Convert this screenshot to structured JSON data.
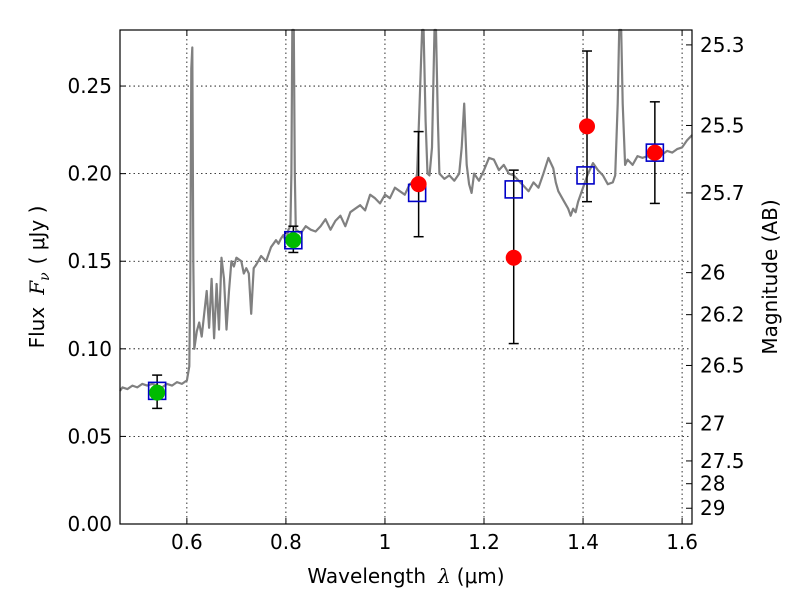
{
  "chart_data": {
    "type": "scatter",
    "xlabel_prefix": "Wavelength",
    "xlabel_symbol": "λ",
    "xlabel_unit": "(μm)",
    "ylabel_prefix": "Flux",
    "ylabel_symbol": "F",
    "ylabel_subscript": "ν",
    "ylabel_unit": "( μJy )",
    "y2label": "Magnitude (AB)",
    "xlim": [
      0.465,
      1.62
    ],
    "ylim": [
      0.0,
      0.282
    ],
    "x_ticks": [
      0.6,
      0.8,
      1.0,
      1.2,
      1.4,
      1.6
    ],
    "x_tick_labels": [
      "0.6",
      "0.8",
      "1",
      "1.2",
      "1.4",
      "1.6"
    ],
    "y_ticks": [
      0.0,
      0.05,
      0.1,
      0.15,
      0.2,
      0.25
    ],
    "y_tick_labels": [
      "0.00",
      "0.05",
      "0.10",
      "0.15",
      "0.20",
      "0.25"
    ],
    "y2_ticks": [
      {
        "label": "25.3",
        "flux": 0.2735
      },
      {
        "label": "25.5",
        "flux": 0.2275
      },
      {
        "label": "25.7",
        "flux": 0.189
      },
      {
        "label": "26",
        "flux": 0.1435
      },
      {
        "label": "26.2",
        "flux": 0.1195
      },
      {
        "label": "26.5",
        "flux": 0.0905
      },
      {
        "label": "27",
        "flux": 0.0575
      },
      {
        "label": "27.5",
        "flux": 0.036
      },
      {
        "label": "28",
        "flux": 0.023
      },
      {
        "label": "29",
        "flux": 0.009
      }
    ],
    "grid": true,
    "colors": {
      "spectrum": "#808080",
      "model_box": "#0000c8",
      "green_point": "#00bb00",
      "red_point": "#ff0000",
      "errorbar": "#000000"
    },
    "series": [
      {
        "name": "model-spectrum",
        "type": "line",
        "points": [
          [
            0.465,
            0.076
          ],
          [
            0.47,
            0.078
          ],
          [
            0.48,
            0.077
          ],
          [
            0.49,
            0.079
          ],
          [
            0.5,
            0.078
          ],
          [
            0.51,
            0.08
          ],
          [
            0.52,
            0.079
          ],
          [
            0.53,
            0.08
          ],
          [
            0.54,
            0.079
          ],
          [
            0.55,
            0.078
          ],
          [
            0.56,
            0.08
          ],
          [
            0.57,
            0.079
          ],
          [
            0.58,
            0.081
          ],
          [
            0.59,
            0.08
          ],
          [
            0.6,
            0.082
          ],
          [
            0.605,
            0.09
          ],
          [
            0.607,
            0.14
          ],
          [
            0.609,
            0.26
          ],
          [
            0.611,
            0.272
          ],
          [
            0.613,
            0.15
          ],
          [
            0.615,
            0.1
          ],
          [
            0.62,
            0.11
          ],
          [
            0.625,
            0.115
          ],
          [
            0.63,
            0.107
          ],
          [
            0.635,
            0.12
          ],
          [
            0.64,
            0.133
          ],
          [
            0.645,
            0.112
          ],
          [
            0.65,
            0.14
          ],
          [
            0.655,
            0.106
          ],
          [
            0.66,
            0.137
          ],
          [
            0.665,
            0.111
          ],
          [
            0.67,
            0.152
          ],
          [
            0.675,
            0.14
          ],
          [
            0.68,
            0.111
          ],
          [
            0.685,
            0.133
          ],
          [
            0.69,
            0.15
          ],
          [
            0.695,
            0.147
          ],
          [
            0.7,
            0.152
          ],
          [
            0.71,
            0.15
          ],
          [
            0.715,
            0.143
          ],
          [
            0.72,
            0.146
          ],
          [
            0.725,
            0.143
          ],
          [
            0.73,
            0.12
          ],
          [
            0.735,
            0.146
          ],
          [
            0.74,
            0.148
          ],
          [
            0.75,
            0.153
          ],
          [
            0.76,
            0.15
          ],
          [
            0.77,
            0.158
          ],
          [
            0.78,
            0.162
          ],
          [
            0.785,
            0.16
          ],
          [
            0.79,
            0.163
          ],
          [
            0.795,
            0.165
          ],
          [
            0.8,
            0.161
          ],
          [
            0.805,
            0.168
          ],
          [
            0.809,
            0.17
          ],
          [
            0.811,
            0.2
          ],
          [
            0.813,
            0.282
          ],
          [
            0.816,
            0.282
          ],
          [
            0.818,
            0.2
          ],
          [
            0.82,
            0.168
          ],
          [
            0.83,
            0.166
          ],
          [
            0.84,
            0.17
          ],
          [
            0.85,
            0.168
          ],
          [
            0.86,
            0.167
          ],
          [
            0.87,
            0.17
          ],
          [
            0.88,
            0.174
          ],
          [
            0.89,
            0.168
          ],
          [
            0.9,
            0.173
          ],
          [
            0.91,
            0.176
          ],
          [
            0.92,
            0.17
          ],
          [
            0.93,
            0.178
          ],
          [
            0.94,
            0.18
          ],
          [
            0.95,
            0.182
          ],
          [
            0.96,
            0.179
          ],
          [
            0.97,
            0.188
          ],
          [
            0.98,
            0.186
          ],
          [
            0.99,
            0.183
          ],
          [
            1.0,
            0.188
          ],
          [
            1.01,
            0.186
          ],
          [
            1.02,
            0.192
          ],
          [
            1.03,
            0.19
          ],
          [
            1.04,
            0.188
          ],
          [
            1.05,
            0.194
          ],
          [
            1.055,
            0.195
          ],
          [
            1.06,
            0.193
          ],
          [
            1.065,
            0.2
          ],
          [
            1.07,
            0.24
          ],
          [
            1.075,
            0.282
          ],
          [
            1.078,
            0.282
          ],
          [
            1.082,
            0.23
          ],
          [
            1.086,
            0.2
          ],
          [
            1.09,
            0.199
          ],
          [
            1.095,
            0.215
          ],
          [
            1.1,
            0.282
          ],
          [
            1.103,
            0.282
          ],
          [
            1.107,
            0.23
          ],
          [
            1.11,
            0.2
          ],
          [
            1.12,
            0.197
          ],
          [
            1.13,
            0.199
          ],
          [
            1.14,
            0.196
          ],
          [
            1.15,
            0.2
          ],
          [
            1.155,
            0.215
          ],
          [
            1.16,
            0.24
          ],
          [
            1.165,
            0.205
          ],
          [
            1.17,
            0.194
          ],
          [
            1.175,
            0.189
          ],
          [
            1.18,
            0.2
          ],
          [
            1.19,
            0.196
          ],
          [
            1.2,
            0.202
          ],
          [
            1.21,
            0.209
          ],
          [
            1.22,
            0.208
          ],
          [
            1.23,
            0.202
          ],
          [
            1.24,
            0.205
          ],
          [
            1.25,
            0.2
          ],
          [
            1.26,
            0.199
          ],
          [
            1.27,
            0.196
          ],
          [
            1.28,
            0.193
          ],
          [
            1.29,
            0.19
          ],
          [
            1.3,
            0.195
          ],
          [
            1.31,
            0.192
          ],
          [
            1.32,
            0.2
          ],
          [
            1.33,
            0.209
          ],
          [
            1.34,
            0.203
          ],
          [
            1.345,
            0.195
          ],
          [
            1.35,
            0.19
          ],
          [
            1.36,
            0.185
          ],
          [
            1.37,
            0.18
          ],
          [
            1.375,
            0.176
          ],
          [
            1.38,
            0.18
          ],
          [
            1.385,
            0.178
          ],
          [
            1.39,
            0.184
          ],
          [
            1.4,
            0.192
          ],
          [
            1.41,
            0.2
          ],
          [
            1.42,
            0.206
          ],
          [
            1.43,
            0.202
          ],
          [
            1.44,
            0.199
          ],
          [
            1.45,
            0.194
          ],
          [
            1.46,
            0.195
          ],
          [
            1.465,
            0.199
          ],
          [
            1.47,
            0.24
          ],
          [
            1.473,
            0.282
          ],
          [
            1.477,
            0.282
          ],
          [
            1.48,
            0.24
          ],
          [
            1.485,
            0.205
          ],
          [
            1.49,
            0.208
          ],
          [
            1.5,
            0.205
          ],
          [
            1.51,
            0.21
          ],
          [
            1.52,
            0.209
          ],
          [
            1.53,
            0.21
          ],
          [
            1.54,
            0.208
          ],
          [
            1.55,
            0.212
          ],
          [
            1.56,
            0.211
          ],
          [
            1.57,
            0.213
          ],
          [
            1.58,
            0.212
          ],
          [
            1.59,
            0.214
          ],
          [
            1.6,
            0.215
          ],
          [
            1.61,
            0.219
          ],
          [
            1.62,
            0.222
          ]
        ]
      },
      {
        "name": "model-photometry",
        "type": "box-marker",
        "x": [
          0.54,
          0.815,
          1.065,
          1.26,
          1.405,
          1.545
        ],
        "y": [
          0.076,
          0.162,
          0.189,
          0.191,
          0.199,
          0.212
        ]
      },
      {
        "name": "observed-green",
        "type": "scatter",
        "x": [
          0.54,
          0.815
        ],
        "y": [
          0.075,
          0.162
        ],
        "yerr_low": [
          0.066,
          0.155
        ],
        "yerr_high": [
          0.085,
          0.17
        ]
      },
      {
        "name": "observed-red",
        "type": "scatter",
        "x": [
          1.068,
          1.26,
          1.408,
          1.545
        ],
        "y": [
          0.194,
          0.152,
          0.227,
          0.212
        ],
        "yerr_low": [
          0.164,
          0.103,
          0.184,
          0.183
        ],
        "yerr_high": [
          0.224,
          0.202,
          0.27,
          0.241
        ]
      }
    ]
  }
}
